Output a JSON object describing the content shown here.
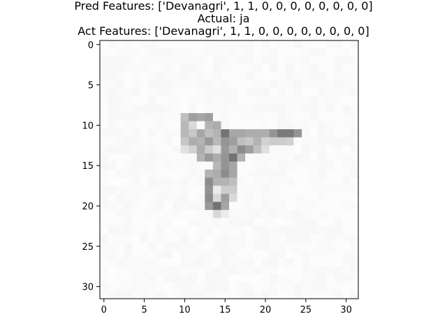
{
  "title": {
    "line1": "Pred Features: ['Devanagri', 1, 1, 0, 0, 0, 0, 0, 0, 0, 0]",
    "line2": "Actual: ja",
    "line3": "Act Features: ['Devanagri', 1, 1, 0, 0, 0, 0, 0, 0, 0, 0]"
  },
  "chart_data": {
    "type": "heatmap",
    "colormap": "gray_r",
    "grid": false,
    "rows": 32,
    "cols": 32,
    "xlim": [
      -0.5,
      31.5
    ],
    "ylim": [
      31.5,
      -0.5
    ],
    "x_ticks": [
      0,
      5,
      10,
      15,
      20,
      25,
      30
    ],
    "y_ticks": [
      0,
      5,
      10,
      15,
      20,
      25,
      30
    ],
    "xlabel": "",
    "ylabel": "",
    "background_intensity": 0.02,
    "cells": [
      [
        9,
        10,
        0.25
      ],
      [
        9,
        11,
        0.38
      ],
      [
        9,
        12,
        0.35
      ],
      [
        9,
        13,
        0.38
      ],
      [
        10,
        10,
        0.28
      ],
      [
        10,
        11,
        0.15
      ],
      [
        10,
        13,
        0.3
      ],
      [
        10,
        14,
        0.32
      ],
      [
        11,
        10,
        0.28
      ],
      [
        11,
        11,
        0.22
      ],
      [
        11,
        12,
        0.35
      ],
      [
        11,
        13,
        0.25
      ],
      [
        11,
        14,
        0.3
      ],
      [
        11,
        15,
        0.55
      ],
      [
        11,
        16,
        0.35
      ],
      [
        11,
        17,
        0.35
      ],
      [
        11,
        18,
        0.32
      ],
      [
        11,
        19,
        0.32
      ],
      [
        11,
        20,
        0.32
      ],
      [
        11,
        21,
        0.42
      ],
      [
        11,
        22,
        0.52
      ],
      [
        11,
        23,
        0.52
      ],
      [
        11,
        24,
        0.42
      ],
      [
        12,
        10,
        0.22
      ],
      [
        12,
        11,
        0.32
      ],
      [
        12,
        12,
        0.3
      ],
      [
        12,
        13,
        0.4
      ],
      [
        12,
        14,
        0.28
      ],
      [
        12,
        15,
        0.42
      ],
      [
        12,
        16,
        0.38
      ],
      [
        12,
        17,
        0.25
      ],
      [
        12,
        18,
        0.22
      ],
      [
        12,
        19,
        0.3
      ],
      [
        12,
        20,
        0.18
      ],
      [
        12,
        21,
        0.2
      ],
      [
        12,
        22,
        0.2
      ],
      [
        12,
        23,
        0.18
      ],
      [
        13,
        10,
        0.12
      ],
      [
        13,
        11,
        0.18
      ],
      [
        13,
        12,
        0.32
      ],
      [
        13,
        13,
        0.2
      ],
      [
        13,
        14,
        0.12
      ],
      [
        13,
        15,
        0.4
      ],
      [
        13,
        16,
        0.3
      ],
      [
        13,
        17,
        0.45
      ],
      [
        13,
        18,
        0.38
      ],
      [
        13,
        19,
        0.25
      ],
      [
        13,
        20,
        0.12
      ],
      [
        14,
        12,
        0.3
      ],
      [
        14,
        13,
        0.4
      ],
      [
        14,
        14,
        0.32
      ],
      [
        14,
        15,
        0.42
      ],
      [
        14,
        16,
        0.55
      ],
      [
        14,
        17,
        0.3
      ],
      [
        15,
        14,
        0.28
      ],
      [
        15,
        15,
        0.42
      ],
      [
        15,
        16,
        0.35
      ],
      [
        16,
        13,
        0.3
      ],
      [
        16,
        14,
        0.32
      ],
      [
        16,
        15,
        0.45
      ],
      [
        16,
        16,
        0.35
      ],
      [
        17,
        13,
        0.45
      ],
      [
        17,
        14,
        0.3
      ],
      [
        17,
        15,
        0.3
      ],
      [
        17,
        16,
        0.25
      ],
      [
        18,
        13,
        0.42
      ],
      [
        18,
        14,
        0.08
      ],
      [
        18,
        15,
        0.2
      ],
      [
        18,
        16,
        0.2
      ],
      [
        19,
        13,
        0.45
      ],
      [
        19,
        14,
        0.15
      ],
      [
        19,
        15,
        0.38
      ],
      [
        19,
        16,
        0.15
      ],
      [
        20,
        13,
        0.4
      ],
      [
        20,
        14,
        0.55
      ],
      [
        20,
        15,
        0.35
      ],
      [
        21,
        14,
        0.15
      ],
      [
        21,
        15,
        0.08
      ]
    ]
  }
}
